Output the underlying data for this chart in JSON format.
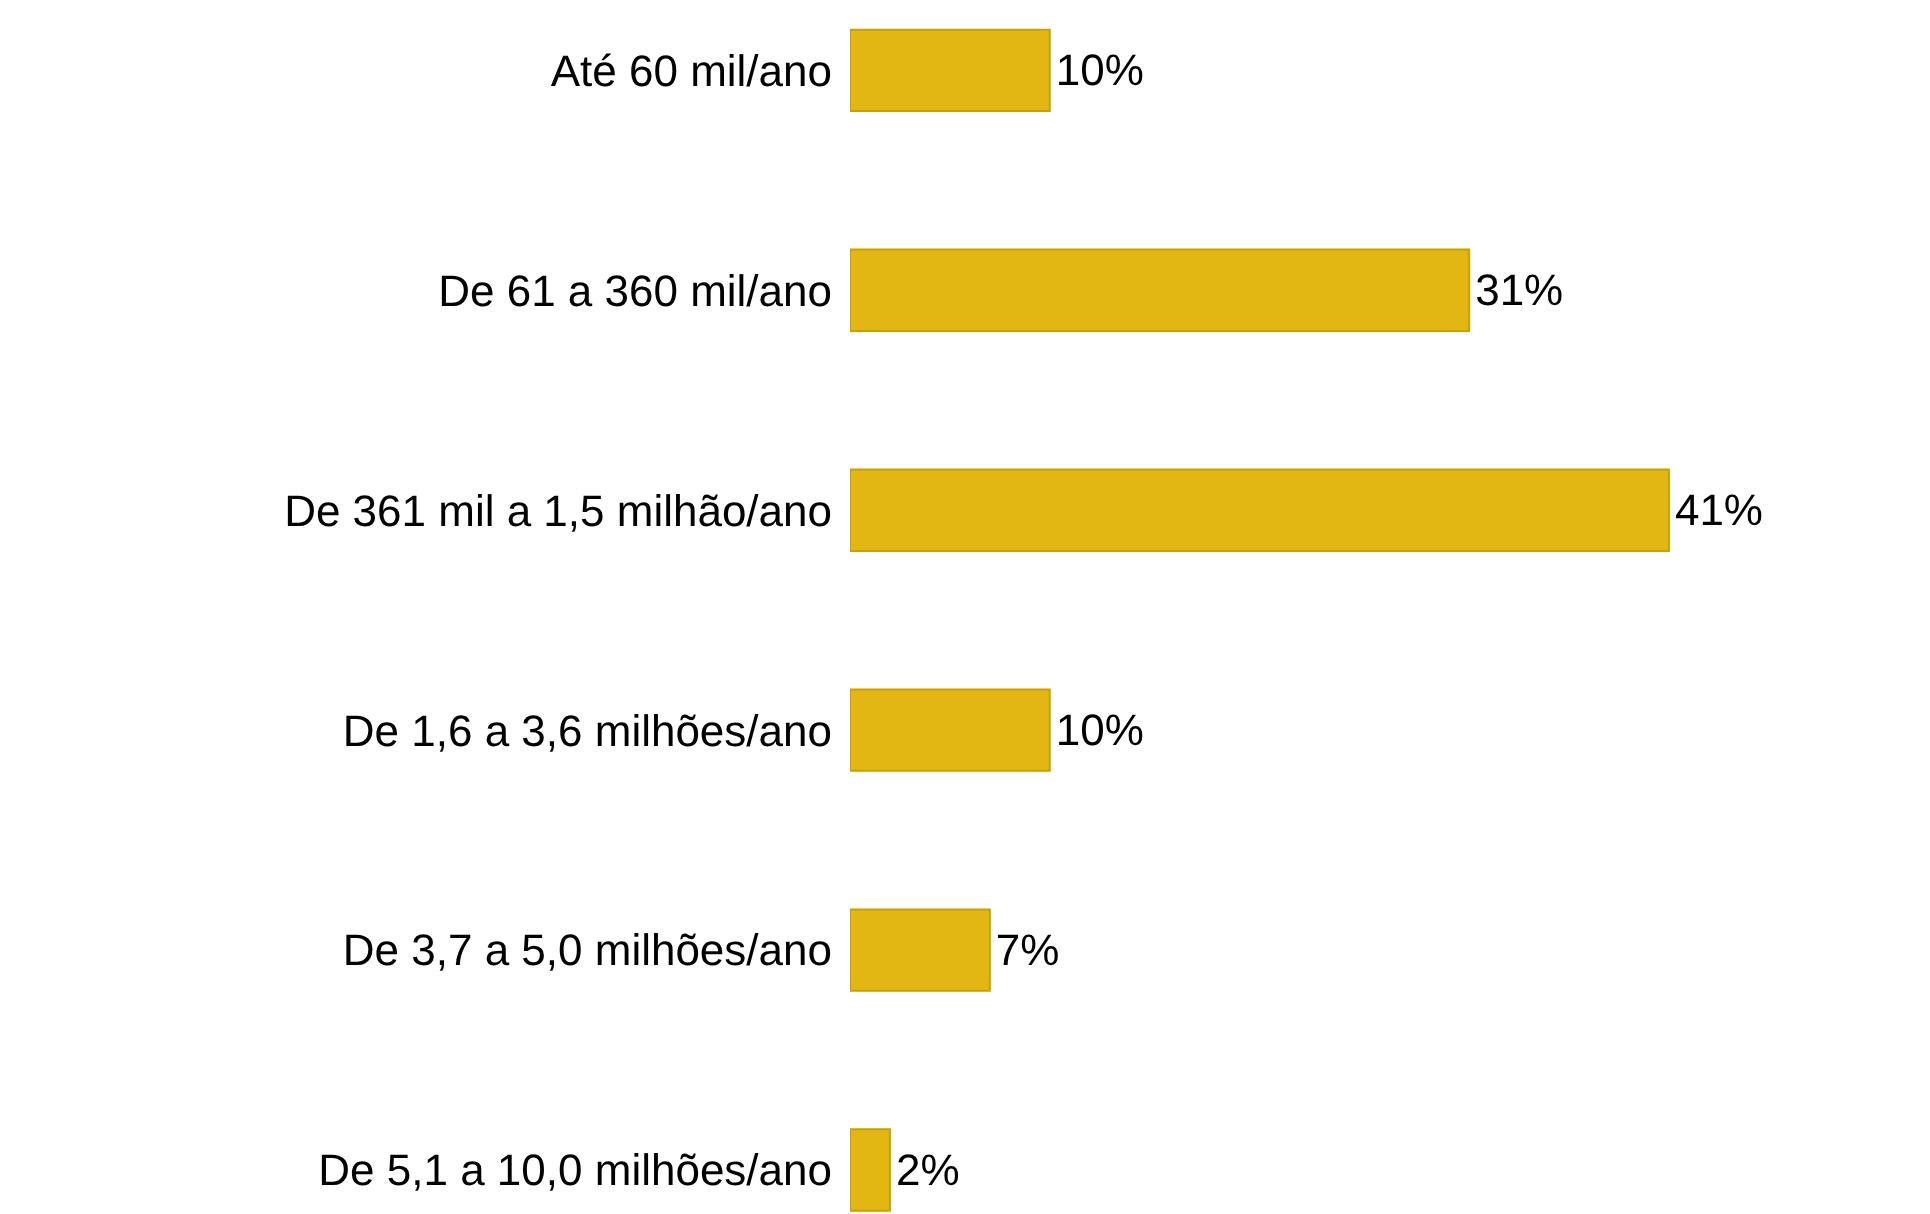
{
  "chart_data": {
    "type": "bar",
    "orientation": "horizontal",
    "categories": [
      "Até 60 mil/ano",
      "De 61 a 360 mil/ano",
      "De 361 mil a 1,5 milhão/ano",
      "De 1,6 a 3,6 milhões/ano",
      "De 3,7 a 5,0 milhões/ano",
      "De 5,1 a 10,0 milhões/ano"
    ],
    "values": [
      10,
      31,
      41,
      10,
      7,
      2
    ],
    "value_labels": [
      "10%",
      "31%",
      "41%",
      "10%",
      "7%",
      "2%"
    ],
    "color": "#e2b714"
  }
}
